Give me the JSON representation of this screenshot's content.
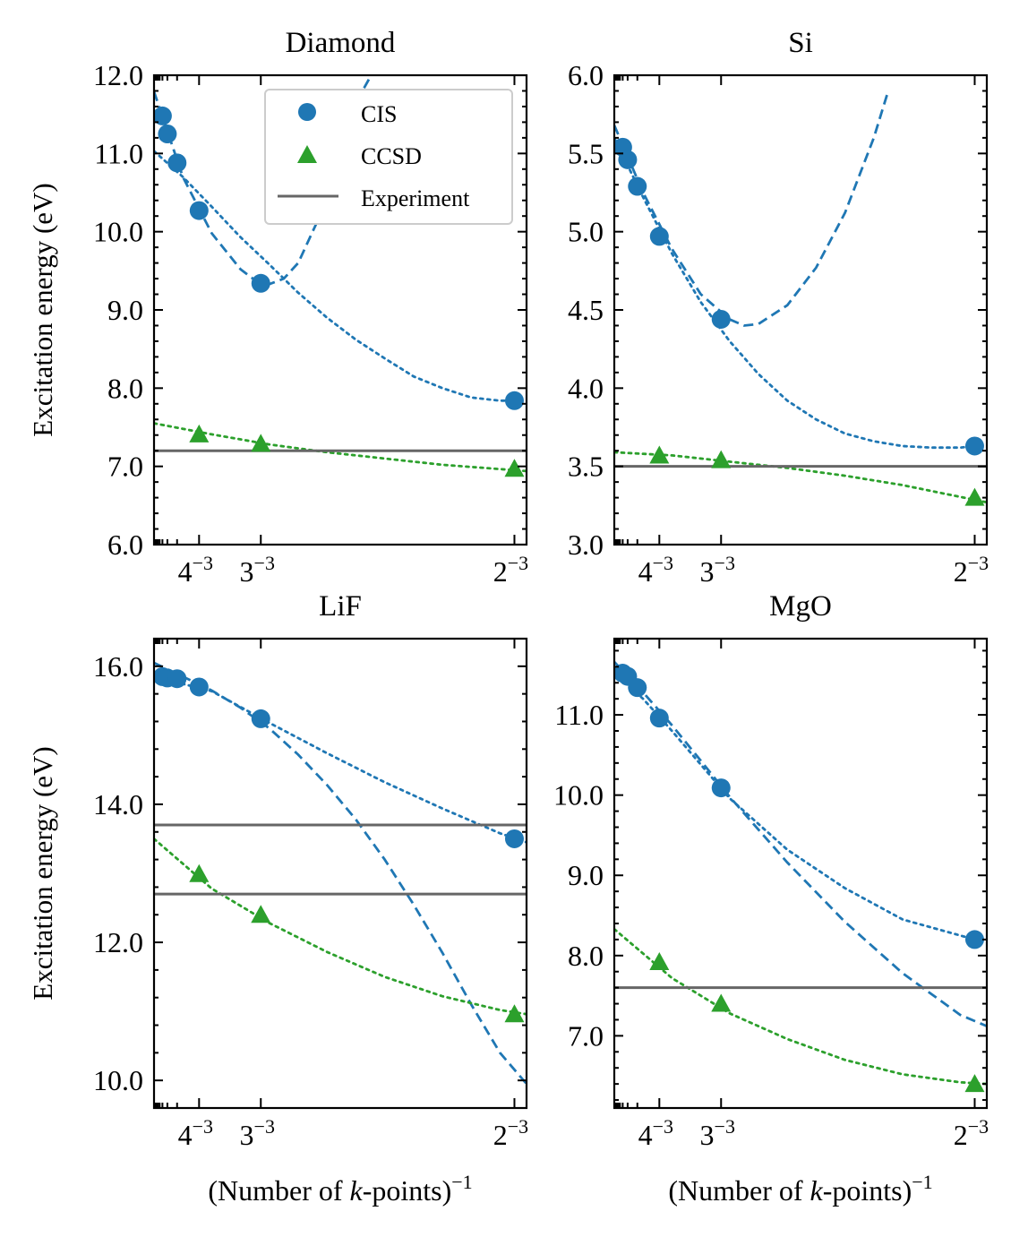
{
  "figure": {
    "ylabel": "Excitation energy (eV)",
    "xlabel": "(Number of k-points)",
    "xlabel_parts": [
      "(Number of ",
      "k",
      "-points)"
    ],
    "xlabel_exponent": "−1",
    "legend": [
      {
        "label": "CIS",
        "marker": "circle",
        "color": "#1f77b4"
      },
      {
        "label": "CCSD",
        "marker": "triangle",
        "color": "#2ca02c"
      },
      {
        "label": "Experiment",
        "marker": "line",
        "color": "#666666"
      }
    ],
    "colors": {
      "cis": "#1f77b4",
      "ccsd": "#2ca02c",
      "experiment": "#666666"
    }
  },
  "chart_data": [
    {
      "type": "line",
      "title": "Diamond",
      "xlabel": "",
      "ylabel": "Excitation energy (eV)",
      "xscale": "linear in 1/Nk",
      "xlim": [
        0,
        0.1292
      ],
      "ylim": [
        6.0,
        12.0
      ],
      "yticks": [
        6.0,
        7.0,
        8.0,
        9.0,
        10.0,
        11.0,
        12.0
      ],
      "xticks": [
        {
          "value": 0.015625,
          "base": "4",
          "exp": "−3"
        },
        {
          "value": 0.037037,
          "base": "3",
          "exp": "−3"
        },
        {
          "value": 0.125,
          "base": "2",
          "exp": "−3"
        }
      ],
      "series": [
        {
          "name": "CIS",
          "kind": "points",
          "marker": "circle",
          "x": [
            0.002915,
            0.00463,
            0.008,
            0.015625,
            0.037037,
            0.125
          ],
          "y": [
            11.48,
            11.25,
            10.88,
            10.27,
            9.34,
            7.84
          ]
        },
        {
          "name": "CCSD",
          "kind": "points",
          "marker": "triangle",
          "x": [
            0.015625,
            0.037037,
            0.125
          ],
          "y": [
            7.41,
            7.29,
            6.97
          ]
        },
        {
          "name": "CIS fit (dashed)",
          "kind": "curve",
          "style": "dashed",
          "x": [
            0.0,
            0.01,
            0.02,
            0.03,
            0.035,
            0.04,
            0.045,
            0.05,
            0.06,
            0.065,
            0.07,
            0.0753
          ],
          "y": [
            11.79,
            10.7,
            9.98,
            9.52,
            9.38,
            9.33,
            9.4,
            9.6,
            10.4,
            10.98,
            11.65,
            12.0
          ]
        },
        {
          "name": "CIS fit (dotted)",
          "kind": "curve",
          "style": "dotted",
          "x": [
            0.0,
            0.01,
            0.02,
            0.03,
            0.04,
            0.05,
            0.06,
            0.07,
            0.08,
            0.09,
            0.1,
            0.11,
            0.12,
            0.125
          ],
          "y": [
            11.03,
            10.7,
            10.32,
            9.93,
            9.58,
            9.22,
            8.9,
            8.62,
            8.38,
            8.15,
            8.0,
            7.88,
            7.84,
            7.84
          ]
        },
        {
          "name": "CCSD fit (dotted)",
          "kind": "curve",
          "style": "dotted",
          "color": "ccsd",
          "x": [
            0.0,
            0.02,
            0.04,
            0.06,
            0.08,
            0.1,
            0.1292
          ],
          "y": [
            7.55,
            7.41,
            7.28,
            7.18,
            7.1,
            7.02,
            6.94
          ]
        },
        {
          "name": "Experiment",
          "kind": "hline",
          "y": [
            7.2
          ]
        }
      ],
      "legend": "top-right"
    },
    {
      "type": "line",
      "title": "Si",
      "xlabel": "",
      "ylabel": "",
      "xscale": "linear in 1/Nk",
      "xlim": [
        0,
        0.1292
      ],
      "ylim": [
        3.0,
        6.0
      ],
      "yticks": [
        3.0,
        3.5,
        4.0,
        4.5,
        5.0,
        5.5,
        6.0
      ],
      "xticks": [
        {
          "value": 0.015625,
          "base": "4",
          "exp": "−3"
        },
        {
          "value": 0.037037,
          "base": "3",
          "exp": "−3"
        },
        {
          "value": 0.125,
          "base": "2",
          "exp": "−3"
        }
      ],
      "series": [
        {
          "name": "CIS",
          "kind": "points",
          "marker": "circle",
          "x": [
            0.002915,
            0.00463,
            0.008,
            0.015625,
            0.037037,
            0.125
          ],
          "y": [
            5.54,
            5.46,
            5.29,
            4.97,
            4.44,
            3.63
          ]
        },
        {
          "name": "CCSD",
          "kind": "points",
          "marker": "triangle",
          "x": [
            0.015625,
            0.037037,
            0.125
          ],
          "y": [
            3.57,
            3.54,
            3.3
          ]
        },
        {
          "name": "CIS fit (dashed)",
          "kind": "curve",
          "style": "dashed",
          "x": [
            0.0,
            0.01,
            0.02,
            0.03,
            0.04,
            0.045,
            0.05,
            0.06,
            0.07,
            0.08,
            0.09,
            0.095
          ],
          "y": [
            5.68,
            5.25,
            4.89,
            4.6,
            4.44,
            4.4,
            4.41,
            4.53,
            4.77,
            5.12,
            5.6,
            5.9
          ]
        },
        {
          "name": "CIS fit (dotted)",
          "kind": "curve",
          "style": "dotted",
          "x": [
            0.0,
            0.01,
            0.02,
            0.03,
            0.04,
            0.05,
            0.06,
            0.07,
            0.08,
            0.09,
            0.1,
            0.11,
            0.12,
            0.125
          ],
          "y": [
            5.6,
            5.22,
            4.86,
            4.55,
            4.3,
            4.09,
            3.92,
            3.8,
            3.71,
            3.66,
            3.63,
            3.62,
            3.62,
            3.63
          ]
        },
        {
          "name": "CCSD fit (dotted)",
          "kind": "curve",
          "style": "dotted",
          "color": "ccsd",
          "x": [
            0.0,
            0.02,
            0.04,
            0.06,
            0.08,
            0.1,
            0.1292
          ],
          "y": [
            3.59,
            3.57,
            3.53,
            3.49,
            3.44,
            3.38,
            3.27
          ]
        },
        {
          "name": "Experiment",
          "kind": "hline",
          "y": [
            3.5
          ]
        }
      ]
    },
    {
      "type": "line",
      "title": "LiF",
      "xlabel": "(Number of k-points)^-1",
      "ylabel": "Excitation energy (eV)",
      "xscale": "linear in 1/Nk",
      "xlim": [
        0,
        0.1292
      ],
      "ylim": [
        9.6,
        16.4
      ],
      "yticks": [
        10.0,
        12.0,
        14.0,
        16.0
      ],
      "xticks": [
        {
          "value": 0.015625,
          "base": "4",
          "exp": "−3"
        },
        {
          "value": 0.037037,
          "base": "3",
          "exp": "−3"
        },
        {
          "value": 0.125,
          "base": "2",
          "exp": "−3"
        }
      ],
      "series": [
        {
          "name": "CIS",
          "kind": "points",
          "marker": "circle",
          "x": [
            0.002915,
            0.00463,
            0.008,
            0.015625,
            0.037037,
            0.125
          ],
          "y": [
            15.85,
            15.83,
            15.82,
            15.7,
            15.24,
            13.5
          ]
        },
        {
          "name": "CCSD",
          "kind": "points",
          "marker": "triangle",
          "x": [
            0.015625,
            0.037037,
            0.125
          ],
          "y": [
            12.99,
            12.4,
            10.96
          ]
        },
        {
          "name": "CIS fit (dashed)",
          "kind": "curve",
          "style": "dashed",
          "x": [
            0.0,
            0.01,
            0.02,
            0.03,
            0.04,
            0.05,
            0.06,
            0.07,
            0.08,
            0.09,
            0.1,
            0.11,
            0.12,
            0.1292
          ],
          "y": [
            16.05,
            15.85,
            15.65,
            15.4,
            15.1,
            14.72,
            14.28,
            13.78,
            13.2,
            12.55,
            11.85,
            11.1,
            10.4,
            9.95
          ]
        },
        {
          "name": "CIS fit (dotted)",
          "kind": "curve",
          "style": "dotted",
          "x": [
            0.0,
            0.02,
            0.04,
            0.06,
            0.08,
            0.1,
            0.12,
            0.1292
          ],
          "y": [
            15.85,
            15.64,
            15.18,
            14.74,
            14.32,
            13.94,
            13.58,
            13.45
          ]
        },
        {
          "name": "CCSD fit (dotted)",
          "kind": "curve",
          "style": "dotted",
          "color": "ccsd",
          "x": [
            0.0,
            0.02,
            0.04,
            0.06,
            0.08,
            0.1,
            0.12,
            0.1292
          ],
          "y": [
            13.5,
            12.78,
            12.28,
            11.86,
            11.5,
            11.22,
            11.02,
            10.96
          ]
        },
        {
          "name": "Experiment",
          "kind": "hline",
          "y": [
            13.7,
            12.7
          ]
        }
      ]
    },
    {
      "type": "line",
      "title": "MgO",
      "xlabel": "(Number of k-points)^-1",
      "ylabel": "",
      "xscale": "linear in 1/Nk",
      "xlim": [
        0,
        0.1292
      ],
      "ylim": [
        6.1,
        11.95
      ],
      "yticks": [
        7.0,
        8.0,
        9.0,
        10.0,
        11.0
      ],
      "xticks": [
        {
          "value": 0.015625,
          "base": "4",
          "exp": "−3"
        },
        {
          "value": 0.037037,
          "base": "3",
          "exp": "−3"
        },
        {
          "value": 0.125,
          "base": "2",
          "exp": "−3"
        }
      ],
      "series": [
        {
          "name": "CIS",
          "kind": "points",
          "marker": "circle",
          "x": [
            0.002915,
            0.00463,
            0.008,
            0.015625,
            0.037037,
            0.125
          ],
          "y": [
            11.52,
            11.48,
            11.34,
            10.96,
            10.09,
            8.2
          ]
        },
        {
          "name": "CCSD",
          "kind": "points",
          "marker": "triangle",
          "x": [
            0.015625,
            0.037037,
            0.125
          ],
          "y": [
            7.92,
            7.4,
            6.4
          ]
        },
        {
          "name": "CIS fit (dashed)",
          "kind": "curve",
          "style": "dashed",
          "x": [
            0.0,
            0.01,
            0.02,
            0.03,
            0.04,
            0.06,
            0.08,
            0.1,
            0.12,
            0.1292
          ],
          "y": [
            11.66,
            11.28,
            10.87,
            10.43,
            9.98,
            9.16,
            8.42,
            7.78,
            7.26,
            7.12
          ]
        },
        {
          "name": "CIS fit (dotted)",
          "kind": "curve",
          "style": "dotted",
          "x": [
            0.0,
            0.01,
            0.02,
            0.03,
            0.04,
            0.06,
            0.08,
            0.1,
            0.12,
            0.125
          ],
          "y": [
            11.52,
            11.2,
            10.8,
            10.38,
            9.96,
            9.32,
            8.84,
            8.45,
            8.25,
            8.2
          ]
        },
        {
          "name": "CCSD fit (dotted)",
          "kind": "curve",
          "style": "dotted",
          "color": "ccsd",
          "x": [
            0.0,
            0.02,
            0.04,
            0.06,
            0.08,
            0.1,
            0.12,
            0.1292
          ],
          "y": [
            8.33,
            7.72,
            7.28,
            6.96,
            6.7,
            6.52,
            6.42,
            6.4
          ]
        },
        {
          "name": "Experiment",
          "kind": "hline",
          "y": [
            7.6
          ]
        }
      ]
    }
  ]
}
